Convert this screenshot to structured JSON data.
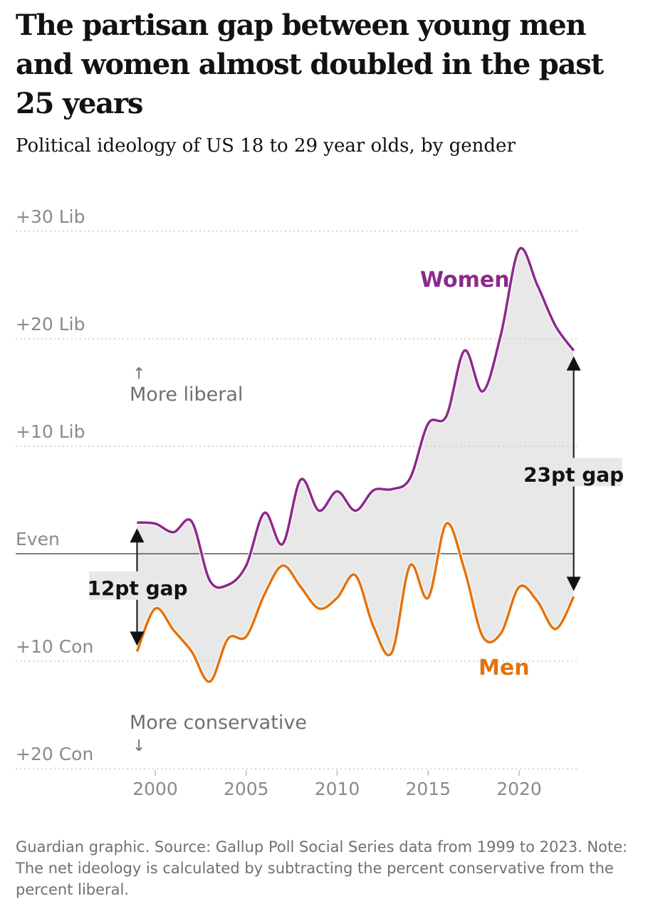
{
  "title": "The partisan gap between young men and women almost doubled in the past 25 years",
  "subtitle": "Political ideology of US 18 to 29 year olds, by gender",
  "footer": "Guardian graphic. Source: Gallup Poll Social Series data from 1999 to 2023. Note: The net ideology is calculated by subtracting the percent conservative from the percent liberal.",
  "chart_data": {
    "type": "line",
    "title": "The partisan gap between young men and women almost doubled in the past 25 years",
    "subtitle": "Political ideology of US 18 to 29 year olds, by gender",
    "x": [
      1999,
      2000,
      2001,
      2002,
      2003,
      2004,
      2005,
      2006,
      2007,
      2008,
      2009,
      2010,
      2011,
      2012,
      2013,
      2014,
      2015,
      2016,
      2017,
      2018,
      2019,
      2020,
      2021,
      2022,
      2023
    ],
    "series": [
      {
        "name": "Women",
        "color": "#8b2a8a",
        "values": [
          2.9,
          2.8,
          2.0,
          3.0,
          -2.5,
          -2.9,
          -1.1,
          3.8,
          0.9,
          6.9,
          4.0,
          5.8,
          4.0,
          5.9,
          6.0,
          7.0,
          12.1,
          12.8,
          18.9,
          15.1,
          20.4,
          28.3,
          25.0,
          21.2,
          18.9
        ]
      },
      {
        "name": "Men",
        "color": "#e4720e",
        "values": [
          -9.1,
          -5.1,
          -7.1,
          -9.1,
          -11.9,
          -7.9,
          -7.7,
          -3.8,
          -1.1,
          -3.1,
          -5.1,
          -4.1,
          -2.0,
          -6.8,
          -9.2,
          -1.1,
          -4.1,
          2.8,
          -1.5,
          -7.7,
          -7.4,
          -3.1,
          -4.4,
          -7.0,
          -4.0
        ]
      }
    ],
    "yticks": [
      {
        "v": 30,
        "label": "+30 Lib"
      },
      {
        "v": 20,
        "label": "+20 Lib"
      },
      {
        "v": 10,
        "label": "+10 Lib"
      },
      {
        "v": 0,
        "label": "Even"
      },
      {
        "v": -10,
        "label": "+10 Con"
      },
      {
        "v": -20,
        "label": "+20 Con"
      }
    ],
    "xticks": [
      {
        "v": 2000,
        "label": "2000"
      },
      {
        "v": 2005,
        "label": "2005"
      },
      {
        "v": 2010,
        "label": "2010"
      },
      {
        "v": 2015,
        "label": "2015"
      },
      {
        "v": 2020,
        "label": "2020"
      }
    ],
    "ylim": [
      -20,
      30
    ],
    "grid": true,
    "annotations": {
      "more_liberal": "More liberal",
      "more_conservative": "More conservative",
      "up_arrow": "↑",
      "down_arrow": "↓",
      "gap_start": {
        "year": 1999,
        "label": "12pt gap"
      },
      "gap_end": {
        "year": 2023,
        "label": "23pt gap"
      }
    },
    "fill_color": "#e8e8e8"
  }
}
